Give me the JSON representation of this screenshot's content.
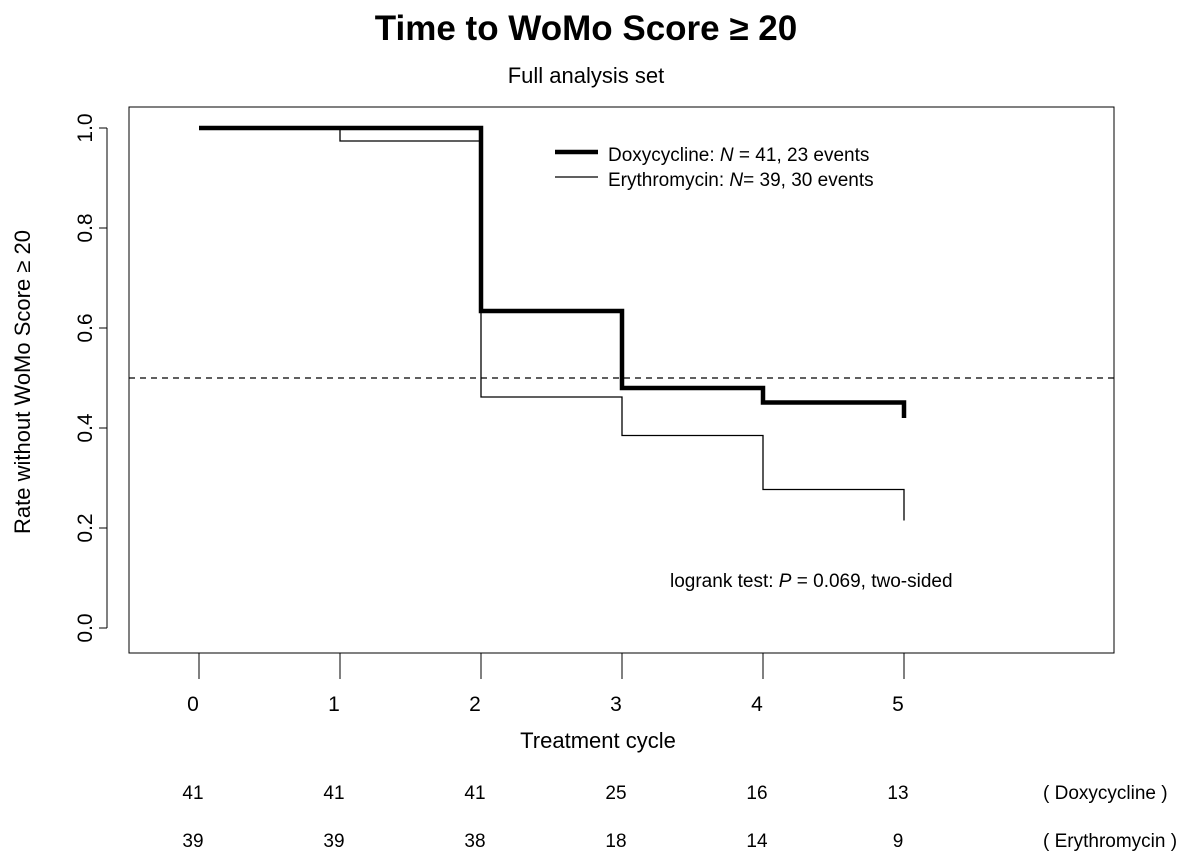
{
  "chart_data": {
    "type": "line",
    "subtype": "kaplan-meier step",
    "title": "Time to WoMo Score ≥ 20",
    "subtitle": "Full analysis set",
    "xlabel": "Treatment cycle",
    "ylabel": "Rate without WoMo Score ≥ 20",
    "xlim": [
      -0.5,
      6.5
    ],
    "ylim": [
      0,
      1
    ],
    "x_ticks": [
      0,
      1,
      2,
      3,
      4,
      5
    ],
    "x_tick_labels": [
      "0",
      "1",
      "2",
      "3",
      "4",
      "5"
    ],
    "y_ticks": [
      0,
      0.2,
      0.4,
      0.6,
      0.8,
      1.0
    ],
    "y_tick_labels": [
      "0.0",
      "0.2",
      "0.4",
      "0.6",
      "0.8",
      "1.0"
    ],
    "reference_line": {
      "y": 0.5,
      "style": "dashed"
    },
    "grid": false,
    "legend_position": "top-right",
    "series": [
      {
        "name": "Doxycycline",
        "legend_prefix": "Doxycycline: ",
        "legend_n_symbol": "N",
        "legend_suffix": " = 41, 23 events",
        "line_weight": "thick",
        "steps": [
          {
            "x": 0,
            "y": 1.0
          },
          {
            "x": 2,
            "y": 0.634
          },
          {
            "x": 3,
            "y": 0.48
          },
          {
            "x": 4,
            "y": 0.451
          },
          {
            "x": 5,
            "y": 0.42
          }
        ],
        "x_end": 5
      },
      {
        "name": "Erythromycin",
        "legend_prefix": "Erythromycin: ",
        "legend_n_symbol": "N",
        "legend_suffix": "= 39, 30 events",
        "line_weight": "thin",
        "steps": [
          {
            "x": 0,
            "y": 1.0
          },
          {
            "x": 1,
            "y": 0.974
          },
          {
            "x": 2,
            "y": 0.462
          },
          {
            "x": 3,
            "y": 0.385
          },
          {
            "x": 4,
            "y": 0.277
          },
          {
            "x": 5,
            "y": 0.215
          }
        ],
        "x_end": 5
      }
    ],
    "annotation": {
      "prefix": "logrank test: ",
      "symbol": "P",
      "suffix": " = 0.069, two-sided"
    },
    "risk_table": [
      {
        "group": "( Doxycycline )",
        "values": [
          "41",
          "41",
          "41",
          "25",
          "16",
          "13"
        ]
      },
      {
        "group": "( Erythromycin )",
        "values": [
          "39",
          "39",
          "38",
          "18",
          "14",
          "9"
        ]
      }
    ]
  }
}
